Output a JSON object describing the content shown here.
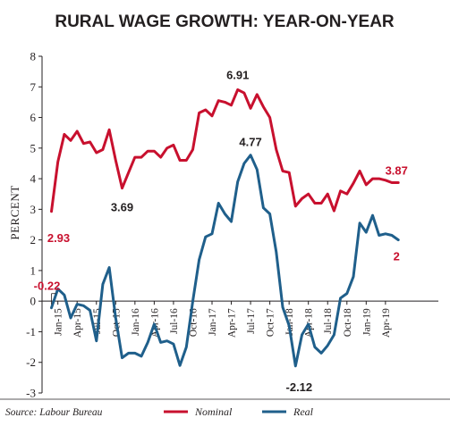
{
  "chart_data": {
    "type": "line",
    "title": "RURAL WAGE GROWTH: YEAR-ON-YEAR",
    "ylabel": "PERCENT",
    "xlabel": "",
    "ylim": [
      -3,
      8
    ],
    "yticks": [
      "8",
      "7",
      "6",
      "5",
      "4",
      "3",
      "2",
      "1",
      "0",
      "-1",
      "-2",
      "-3"
    ],
    "x_tick_labels": [
      "Jan-15",
      "Apr-15",
      "Jul-15",
      "Oct-15",
      "Jan-16",
      "Apr-16",
      "Jul-16",
      "Oct-16",
      "Jan-17",
      "Apr-17",
      "Jul-17",
      "Oct-17",
      "Jan-18",
      "Apr-18",
      "Jul-18",
      "Oct-18",
      "Jan-19",
      "Apr-19"
    ],
    "x": [
      "Dec-14",
      "Jan-15",
      "Feb-15",
      "Mar-15",
      "Apr-15",
      "May-15",
      "Jun-15",
      "Jul-15",
      "Aug-15",
      "Sep-15",
      "Oct-15",
      "Nov-15",
      "Dec-15",
      "Jan-16",
      "Feb-16",
      "Mar-16",
      "Apr-16",
      "May-16",
      "Jun-16",
      "Jul-16",
      "Aug-16",
      "Sep-16",
      "Oct-16",
      "Nov-16",
      "Dec-16",
      "Jan-17",
      "Feb-17",
      "Mar-17",
      "Apr-17",
      "May-17",
      "Jun-17",
      "Jul-17",
      "Aug-17",
      "Sep-17",
      "Oct-17",
      "Nov-17",
      "Dec-17",
      "Jan-18",
      "Feb-18",
      "Mar-18",
      "Apr-18",
      "May-18",
      "Jun-18",
      "Jul-18",
      "Aug-18",
      "Sep-18",
      "Oct-18",
      "Nov-18",
      "Dec-18",
      "Jan-19",
      "Feb-19",
      "Mar-19",
      "Apr-19",
      "May-19",
      "Jun-19"
    ],
    "series": [
      {
        "name": "Nominal",
        "color": "#c8102e",
        "values": [
          2.93,
          4.55,
          5.45,
          5.25,
          5.55,
          5.15,
          5.2,
          4.85,
          4.95,
          5.6,
          4.6,
          3.69,
          4.2,
          4.7,
          4.7,
          4.9,
          4.9,
          4.7,
          5.0,
          5.1,
          4.6,
          4.6,
          4.95,
          6.15,
          6.25,
          6.05,
          6.55,
          6.5,
          6.4,
          6.91,
          6.8,
          6.3,
          6.75,
          6.35,
          6.0,
          4.95,
          4.25,
          4.2,
          3.1,
          3.35,
          3.5,
          3.2,
          3.2,
          3.5,
          2.95,
          3.6,
          3.5,
          3.85,
          4.25,
          3.8,
          4.0,
          4.0,
          3.95,
          3.87,
          3.87
        ],
        "annotations": [
          {
            "label": "2.93",
            "value": 2.93,
            "x": "Dec-14",
            "color": "#c8102e"
          },
          {
            "label": "3.69",
            "value": 3.69,
            "x": "Nov-15",
            "color": "#231f20"
          },
          {
            "label": "6.91",
            "value": 6.91,
            "x": "May-17",
            "color": "#231f20"
          },
          {
            "label": "3.87",
            "value": 3.87,
            "x": "Jun-19",
            "color": "#c8102e"
          }
        ]
      },
      {
        "name": "Real",
        "color": "#1f5f8b",
        "values": [
          -0.22,
          0.4,
          0.2,
          -0.55,
          -0.1,
          -0.15,
          -0.3,
          -1.3,
          0.55,
          1.1,
          -0.55,
          -1.85,
          -1.7,
          -1.7,
          -1.8,
          -1.35,
          -0.75,
          -1.35,
          -1.3,
          -1.4,
          -2.1,
          -1.5,
          0.0,
          1.35,
          2.1,
          2.2,
          3.2,
          2.85,
          2.6,
          3.9,
          4.5,
          4.77,
          4.3,
          3.05,
          2.85,
          1.6,
          -0.2,
          -0.8,
          -2.12,
          -1.1,
          -0.75,
          -1.5,
          -1.7,
          -1.45,
          -1.1,
          0.1,
          0.25,
          0.8,
          2.55,
          2.25,
          2.8,
          2.15,
          2.2,
          2.15,
          2.0
        ],
        "annotations": [
          {
            "label": "-0.22",
            "value": -0.22,
            "x": "Dec-14",
            "color": "#c8102e"
          },
          {
            "label": "4.77",
            "value": 4.77,
            "x": "Jul-17",
            "color": "#231f20"
          },
          {
            "label": "-2.12",
            "value": -2.12,
            "x": "Feb-18",
            "color": "#231f20"
          },
          {
            "label": "2",
            "value": 2.0,
            "x": "Jun-19",
            "color": "#c8102e"
          }
        ]
      }
    ],
    "grid": false,
    "legend": {
      "placement": "bottom-center",
      "entries": [
        "Nominal",
        "Real"
      ]
    }
  },
  "source": "Source: Labour Bureau"
}
